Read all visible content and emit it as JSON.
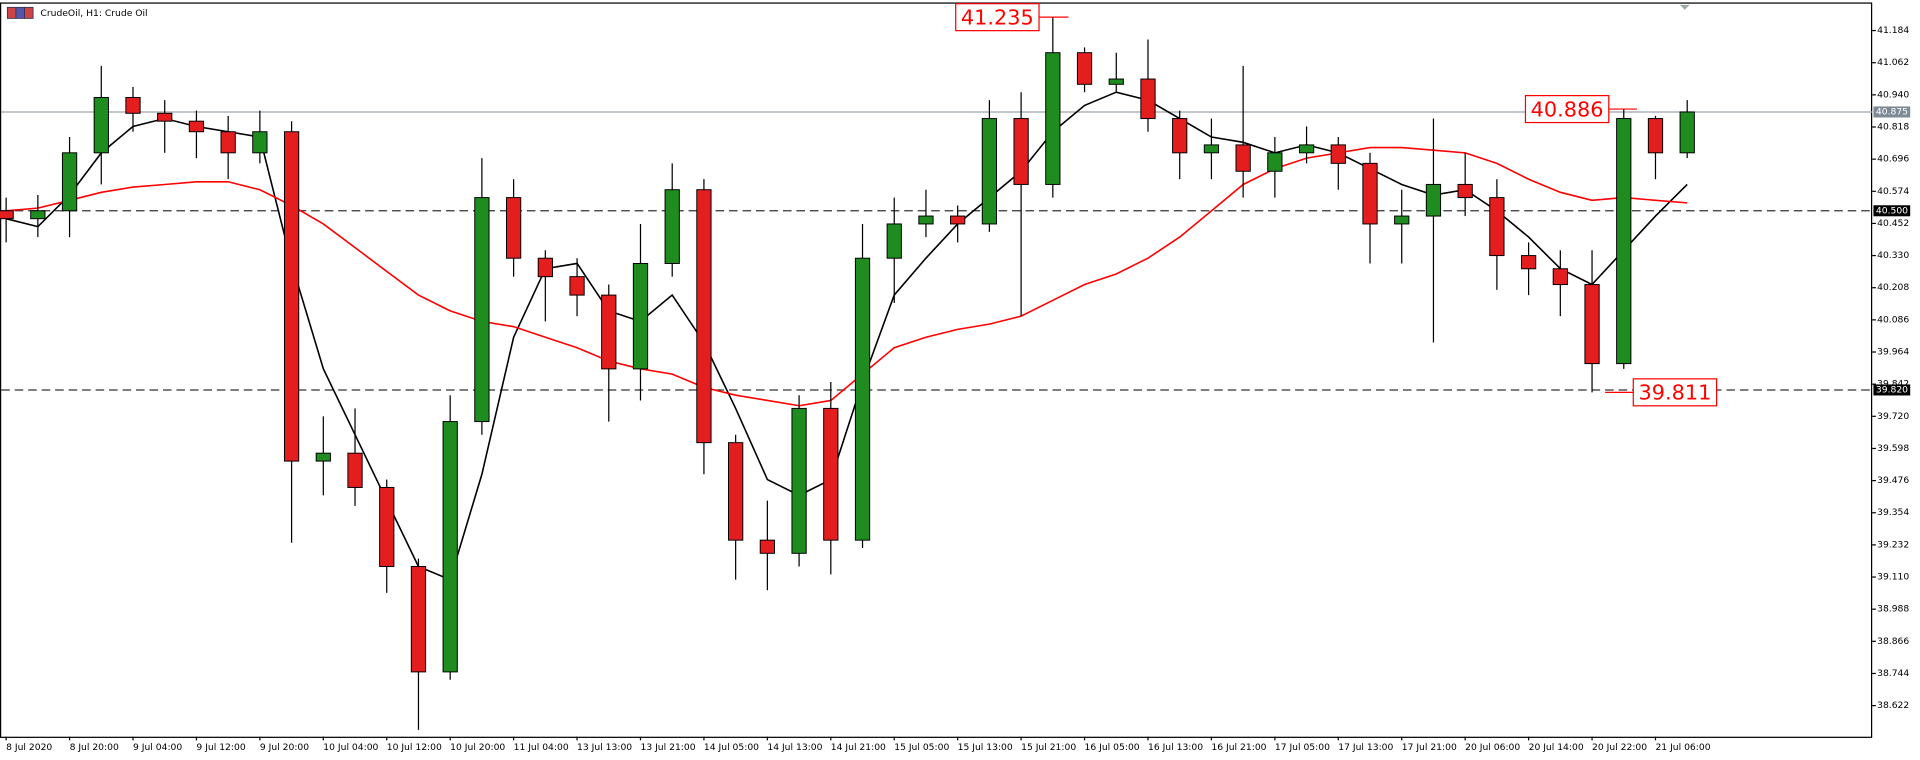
{
  "chart_data": {
    "type": "candlestick",
    "title": "CrudeOil, H1:  Crude Oil",
    "categories": [
      "8 Jul 2020",
      null,
      "8 Jul 20:00",
      null,
      "9 Jul 04:00",
      null,
      "9 Jul 12:00",
      null,
      "9 Jul 20:00",
      null,
      "10 Jul 04:00",
      null,
      "10 Jul 12:00",
      null,
      "10 Jul 20:00",
      null,
      "11 Jul 04:00",
      null,
      "13 Jul 13:00",
      null,
      "13 Jul 21:00",
      null,
      "14 Jul 05:00",
      null,
      "14 Jul 13:00",
      null,
      "14 Jul 21:00",
      null,
      "15 Jul 05:00",
      null,
      "15 Jul 13:00",
      null,
      "15 Jul 21:00",
      null,
      "16 Jul 05:00",
      null,
      "16 Jul 13:00",
      null,
      "16 Jul 21:00",
      null,
      "17 Jul 05:00",
      null,
      "17 Jul 13:00",
      null,
      "17 Jul 21:00",
      null,
      "20 Jul 06:00",
      null,
      "20 Jul 14:00",
      null,
      "20 Jul 22:00",
      null,
      "21 Jul 06:00",
      null
    ],
    "open": [
      40.5,
      40.47,
      40.5,
      40.72,
      40.93,
      40.87,
      40.84,
      40.8,
      40.72,
      40.8,
      39.55,
      39.58,
      39.45,
      39.15,
      38.75,
      39.7,
      40.55,
      40.32,
      40.25,
      40.18,
      39.9,
      40.3,
      40.58,
      39.62,
      39.25,
      39.2,
      39.75,
      39.25,
      40.32,
      40.45,
      40.48,
      40.45,
      40.85,
      40.6,
      41.1,
      40.98,
      41.0,
      40.85,
      40.72,
      40.75,
      40.65,
      40.72,
      40.75,
      40.68,
      40.45,
      40.48,
      40.6,
      40.55,
      40.33,
      40.28,
      40.22,
      39.92,
      40.85,
      40.72
    ],
    "high": [
      40.55,
      40.56,
      40.78,
      41.05,
      40.97,
      40.92,
      40.88,
      40.86,
      40.88,
      40.84,
      39.72,
      39.75,
      39.48,
      39.18,
      39.8,
      40.7,
      40.62,
      40.35,
      40.32,
      40.22,
      40.45,
      40.68,
      40.62,
      39.65,
      39.4,
      39.8,
      39.85,
      40.45,
      40.55,
      40.58,
      40.52,
      40.92,
      40.95,
      41.235,
      41.12,
      41.1,
      41.15,
      40.88,
      40.85,
      41.05,
      40.78,
      40.82,
      40.78,
      40.72,
      40.58,
      40.85,
      40.72,
      40.62,
      40.38,
      40.35,
      40.35,
      40.886,
      40.86,
      40.92
    ],
    "low": [
      40.38,
      40.4,
      40.4,
      40.6,
      40.8,
      40.72,
      40.7,
      40.62,
      40.68,
      39.24,
      39.42,
      39.38,
      39.05,
      38.53,
      38.72,
      39.65,
      40.25,
      40.08,
      40.1,
      39.7,
      39.78,
      40.25,
      39.5,
      39.1,
      39.06,
      39.15,
      39.12,
      39.22,
      40.15,
      40.4,
      40.38,
      40.42,
      40.1,
      40.55,
      40.95,
      40.95,
      40.8,
      40.62,
      40.62,
      40.55,
      40.55,
      40.68,
      40.58,
      40.3,
      40.3,
      40.0,
      40.48,
      40.2,
      40.18,
      40.1,
      39.811,
      39.9,
      40.62,
      40.7
    ],
    "close": [
      40.47,
      40.5,
      40.72,
      40.93,
      40.87,
      40.84,
      40.8,
      40.72,
      40.8,
      39.55,
      39.58,
      39.45,
      39.15,
      38.75,
      39.7,
      40.55,
      40.32,
      40.25,
      40.18,
      39.9,
      40.3,
      40.58,
      39.62,
      39.25,
      39.2,
      39.75,
      39.25,
      40.32,
      40.45,
      40.48,
      40.45,
      40.85,
      40.6,
      41.1,
      40.98,
      41.0,
      40.85,
      40.72,
      40.75,
      40.65,
      40.72,
      40.75,
      40.68,
      40.45,
      40.48,
      40.6,
      40.55,
      40.33,
      40.28,
      40.22,
      39.92,
      40.85,
      40.72,
      40.875
    ],
    "up_color": "#1e8c1e",
    "down_color": "#e41e1e",
    "ma_lines": [
      {
        "color": "#000000",
        "values": [
          40.47,
          40.44,
          40.56,
          40.72,
          40.82,
          40.85,
          40.82,
          40.8,
          40.78,
          40.3,
          39.9,
          39.65,
          39.4,
          39.15,
          39.1,
          39.5,
          40.02,
          40.28,
          40.3,
          40.12,
          40.08,
          40.18,
          40.0,
          39.75,
          39.48,
          39.42,
          39.48,
          39.85,
          40.18,
          40.32,
          40.45,
          40.55,
          40.65,
          40.8,
          40.9,
          40.95,
          40.92,
          40.85,
          40.78,
          40.76,
          40.72,
          40.75,
          40.72,
          40.66,
          40.6,
          40.56,
          40.58,
          40.5,
          40.4,
          40.28,
          40.22,
          40.35,
          40.48,
          40.6
        ]
      },
      {
        "color": "#ff0000",
        "values": [
          40.5,
          40.51,
          40.54,
          40.57,
          40.59,
          40.6,
          40.61,
          40.61,
          40.58,
          40.52,
          40.45,
          40.36,
          40.27,
          40.18,
          40.12,
          40.08,
          40.06,
          40.02,
          39.98,
          39.93,
          39.9,
          39.88,
          39.83,
          39.8,
          39.78,
          39.76,
          39.78,
          39.88,
          39.98,
          40.02,
          40.05,
          40.07,
          40.1,
          40.16,
          40.22,
          40.26,
          40.32,
          40.4,
          40.5,
          40.6,
          40.66,
          40.7,
          40.72,
          40.74,
          40.74,
          40.73,
          40.72,
          40.68,
          40.62,
          40.57,
          40.54,
          40.55,
          40.54,
          40.53
        ]
      }
    ],
    "ylim": [
      38.504,
      41.286
    ],
    "yticks": [
      41.184,
      41.062,
      {
        "value": 40.94,
        "label": "40.940"
      },
      40.818,
      40.696,
      40.574,
      40.452,
      {
        "value": 40.33,
        "label": "40.330"
      },
      40.208,
      40.086,
      39.964,
      39.842,
      {
        "value": 39.72,
        "label": "39.720"
      },
      39.598,
      39.476,
      39.354,
      39.232,
      {
        "value": 39.11,
        "label": "39.110"
      },
      38.988,
      38.866,
      38.744,
      38.622
    ],
    "levels": [
      40.875,
      {
        "value": 40.5,
        "label": "40.500"
      },
      {
        "value": 39.82,
        "label": "39.820"
      }
    ],
    "level_styles": [
      "solid",
      "dashed",
      "dashed"
    ],
    "price_labels": [
      41.235,
      40.886,
      39.811
    ]
  }
}
